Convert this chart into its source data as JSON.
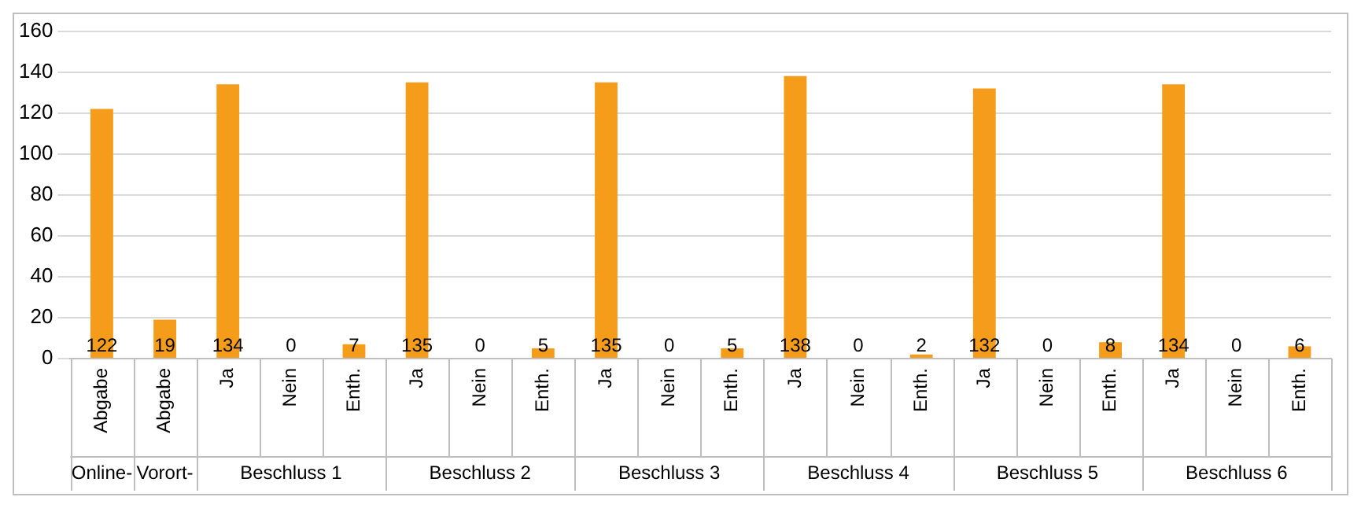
{
  "chart_data": {
    "type": "bar",
    "categories": [
      "Abgabe",
      "Abgabe",
      "Ja",
      "Nein",
      "Enth.",
      "Ja",
      "Nein",
      "Enth.",
      "Ja",
      "Nein",
      "Enth.",
      "Ja",
      "Nein",
      "Enth.",
      "Ja",
      "Nein",
      "Enth.",
      "Ja",
      "Nein",
      "Enth."
    ],
    "values": [
      122,
      19,
      134,
      0,
      7,
      135,
      0,
      5,
      135,
      0,
      5,
      138,
      0,
      2,
      132,
      0,
      8,
      134,
      0,
      6
    ],
    "color": "#f59d1a",
    "ylim": [
      0,
      160
    ],
    "yticks": [
      0,
      20,
      40,
      60,
      80,
      100,
      120,
      140,
      160
    ],
    "grid": "y",
    "data_labels": true,
    "legend": false,
    "annotations": [
      "Online-",
      "Vorort-",
      "Beschluss 1",
      "Beschluss 2",
      "Beschluss 3",
      "Beschluss 4",
      "Beschluss 5",
      "Beschluss 6"
    ]
  }
}
